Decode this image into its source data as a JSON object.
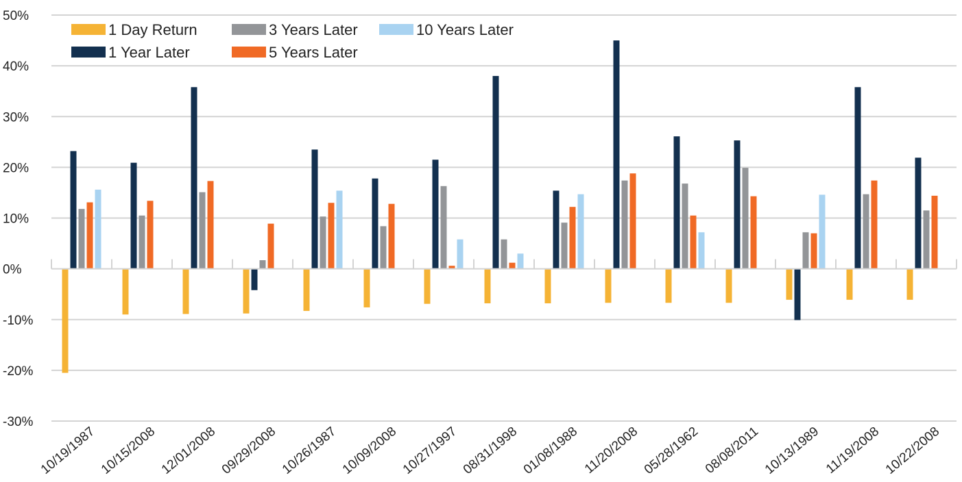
{
  "chart_data": {
    "type": "bar",
    "title": "",
    "xlabel": "",
    "ylabel": "",
    "ylim": [
      -30,
      50
    ],
    "y_ticks": [
      -30,
      -20,
      -10,
      0,
      10,
      20,
      30,
      40,
      50
    ],
    "y_tick_labels": [
      "-30%",
      "-20%",
      "-10%",
      "0%",
      "10%",
      "20%",
      "30%",
      "40%",
      "50%"
    ],
    "grid": true,
    "legend_position": "top-left",
    "categories": [
      "10/19/1987",
      "10/15/2008",
      "12/01/2008",
      "09/29/2008",
      "10/26/1987",
      "10/09/2008",
      "10/27/1997",
      "08/31/1998",
      "01/08/1988",
      "11/20/2008",
      "05/28/1962",
      "08/08/2011",
      "10/13/1989",
      "11/19/2008",
      "10/22/2008"
    ],
    "series": [
      {
        "name": "1 Day Return",
        "color": "#F5B335",
        "values": [
          -20.5,
          -9.0,
          -8.9,
          -8.8,
          -8.3,
          -7.6,
          -6.9,
          -6.8,
          -6.8,
          -6.7,
          -6.7,
          -6.7,
          -6.1,
          -6.1,
          -6.1
        ]
      },
      {
        "name": "1 Year Later",
        "color": "#13304F",
        "values": [
          23.2,
          20.9,
          35.8,
          -4.2,
          23.5,
          17.8,
          21.5,
          38.0,
          15.4,
          45.0,
          26.1,
          25.3,
          -10.1,
          35.8,
          21.9
        ]
      },
      {
        "name": "3 Years Later",
        "color": "#939598",
        "values": [
          11.8,
          10.5,
          15.1,
          1.7,
          10.3,
          8.4,
          16.3,
          5.8,
          9.1,
          17.4,
          16.8,
          19.9,
          7.2,
          14.7,
          11.5
        ]
      },
      {
        "name": "5 Years Later",
        "color": "#F06A25",
        "values": [
          13.1,
          13.4,
          17.3,
          8.9,
          13.0,
          12.8,
          0.6,
          1.2,
          12.2,
          18.8,
          10.5,
          14.3,
          7.0,
          17.4,
          14.4
        ]
      },
      {
        "name": "10 Years Later",
        "color": "#A9D3F1",
        "values": [
          15.6,
          null,
          null,
          null,
          15.4,
          null,
          5.8,
          3.0,
          14.7,
          null,
          7.2,
          null,
          14.6,
          null,
          null
        ]
      }
    ],
    "legend_order": [
      0,
      2,
      4,
      1,
      3
    ]
  }
}
